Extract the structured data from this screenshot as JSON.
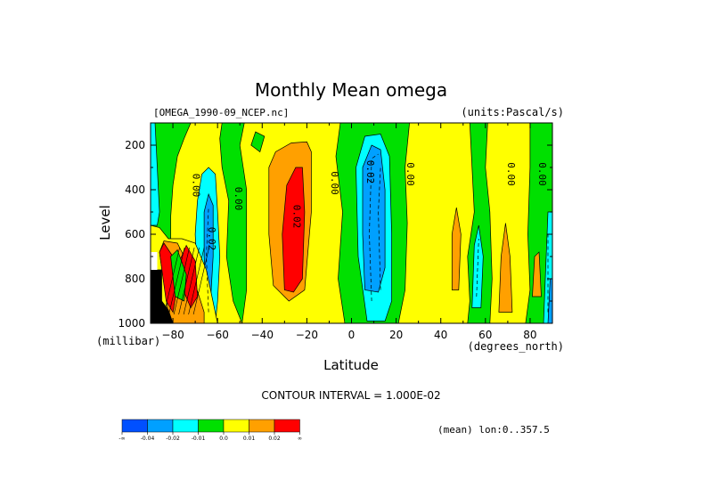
{
  "chart_data": {
    "type": "heatmap",
    "title": "Monthly Mean omega",
    "file_label": "[OMEGA_1990-09_NCEP.nc]",
    "units_label": "(units:Pascal/s)",
    "xlabel": "Latitude",
    "x_units": "(degrees_north)",
    "ylabel": "Level",
    "y_units": "(millibar)",
    "xlim": [
      -90,
      90
    ],
    "ylim": [
      1000,
      100
    ],
    "x_ticks": [
      -80,
      -60,
      -40,
      -20,
      0,
      20,
      40,
      60,
      80
    ],
    "y_ticks": [
      200,
      400,
      600,
      800,
      1000
    ],
    "contour_interval_text": "CONTOUR INTERVAL = 1.000E-02",
    "contour_labels": [
      {
        "text": "0.00",
        "lat": -71,
        "level": 380
      },
      {
        "text": "0.00",
        "lat": -52,
        "level": 440
      },
      {
        "text": "0.02",
        "lat": -64,
        "level": 620
      },
      {
        "text": "0.02",
        "lat": -26,
        "level": 520
      },
      {
        "text": "0.00",
        "lat": -9,
        "level": 370
      },
      {
        "text": "0.02",
        "lat": 7,
        "level": 320
      },
      {
        "text": "0.00",
        "lat": 25,
        "level": 330
      },
      {
        "text": "0.00",
        "lat": 70,
        "level": 330
      },
      {
        "text": "0.00",
        "lat": 84,
        "level": 330
      }
    ],
    "color_levels": [
      {
        "label": "-∞",
        "color": "#0050ff"
      },
      {
        "label": "-0.04",
        "color": "#00a0ff"
      },
      {
        "label": "-0.02",
        "color": "#00ffff"
      },
      {
        "label": "-0.01",
        "color": "#00e000"
      },
      {
        "label": "0.0",
        "color": "#ffff00"
      },
      {
        "label": "0.01",
        "color": "#ffa000"
      },
      {
        "label": "0.02",
        "color": "#ff0000"
      },
      {
        "label": "∞",
        "color": "#ff0000"
      }
    ],
    "footer": "(mean) lon:0..357.5",
    "grid": false,
    "legend": "bottom-left colorbar"
  }
}
